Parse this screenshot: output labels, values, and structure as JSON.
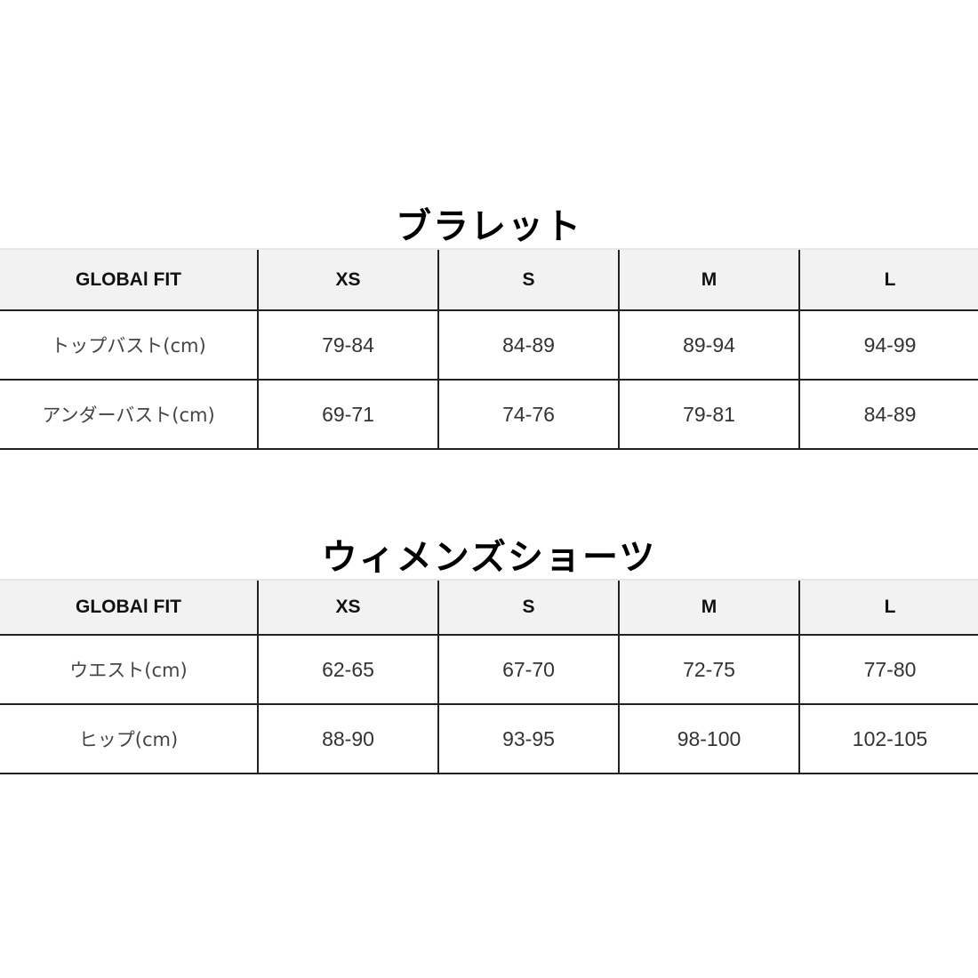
{
  "tables": [
    {
      "title": "ブラレット",
      "headers": [
        "GLOBAl FIT",
        "XS",
        "S",
        "M",
        "L"
      ],
      "rows": [
        {
          "label": "トップバスト(cm)",
          "values": [
            "79-84",
            "84-89",
            "89-94",
            "94-99"
          ]
        },
        {
          "label": "アンダーバスト(cm)",
          "values": [
            "69-71",
            "74-76",
            "79-81",
            "84-89"
          ]
        }
      ]
    },
    {
      "title": "ウィメンズショーツ",
      "headers": [
        "GLOBAl FIT",
        "XS",
        "S",
        "M",
        "L"
      ],
      "rows": [
        {
          "label": "ウエスト(cm)",
          "values": [
            "62-65",
            "67-70",
            "72-75",
            "77-80"
          ]
        },
        {
          "label": "ヒップ(cm)",
          "values": [
            "88-90",
            "93-95",
            "98-100",
            "102-105"
          ]
        }
      ]
    }
  ],
  "colors": {
    "header_bg": "#f2f2f2",
    "border": "#222222"
  }
}
